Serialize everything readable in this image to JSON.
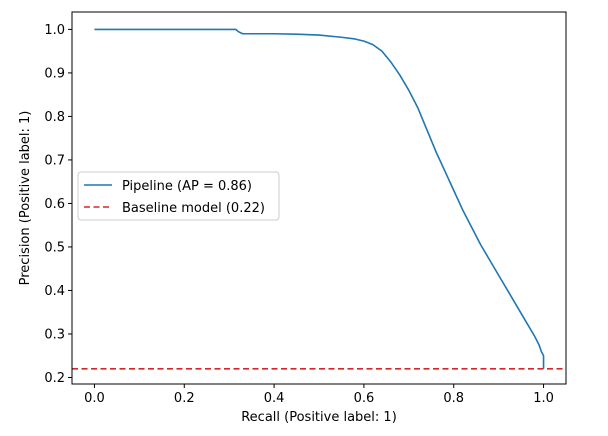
{
  "chart_data": {
    "type": "line",
    "xlabel": "Recall (Positive label: 1)",
    "ylabel": "Precision (Positive label: 1)",
    "xlim": [
      -0.05,
      1.05
    ],
    "ylim": [
      0.185,
      1.04
    ],
    "xticks": [
      0.0,
      0.2,
      0.4,
      0.6,
      0.8,
      1.0
    ],
    "xtick_labels": [
      "0.0",
      "0.2",
      "0.4",
      "0.6",
      "0.8",
      "1.0"
    ],
    "yticks": [
      0.2,
      0.3,
      0.4,
      0.5,
      0.6,
      0.7,
      0.8,
      0.9,
      1.0
    ],
    "ytick_labels": [
      "0.2",
      "0.3",
      "0.4",
      "0.5",
      "0.6",
      "0.7",
      "0.8",
      "0.9",
      "1.0"
    ],
    "grid": false,
    "legend_position": "center-left",
    "series": [
      {
        "name": "Pipeline (AP = 0.86)",
        "style": "solid",
        "color": "#1f77b4",
        "x": [
          0.0,
          0.05,
          0.1,
          0.15,
          0.2,
          0.25,
          0.3,
          0.315,
          0.32,
          0.33,
          0.35,
          0.4,
          0.45,
          0.5,
          0.55,
          0.58,
          0.6,
          0.62,
          0.64,
          0.66,
          0.68,
          0.7,
          0.72,
          0.74,
          0.76,
          0.78,
          0.8,
          0.82,
          0.84,
          0.86,
          0.88,
          0.9,
          0.92,
          0.94,
          0.96,
          0.98,
          0.99,
          0.995,
          1.0,
          1.0
        ],
        "y": [
          1.0,
          1.0,
          1.0,
          1.0,
          1.0,
          1.0,
          1.0,
          1.0,
          0.995,
          0.99,
          0.99,
          0.99,
          0.989,
          0.987,
          0.982,
          0.978,
          0.973,
          0.965,
          0.95,
          0.925,
          0.895,
          0.86,
          0.82,
          0.77,
          0.72,
          0.675,
          0.63,
          0.585,
          0.545,
          0.505,
          0.47,
          0.435,
          0.4,
          0.365,
          0.33,
          0.295,
          0.275,
          0.26,
          0.25,
          0.22
        ]
      },
      {
        "name": "Baseline model (0.22)",
        "style": "dashed",
        "color": "#d62728",
        "x": [
          -0.05,
          1.05
        ],
        "y": [
          0.22,
          0.22
        ]
      }
    ]
  }
}
